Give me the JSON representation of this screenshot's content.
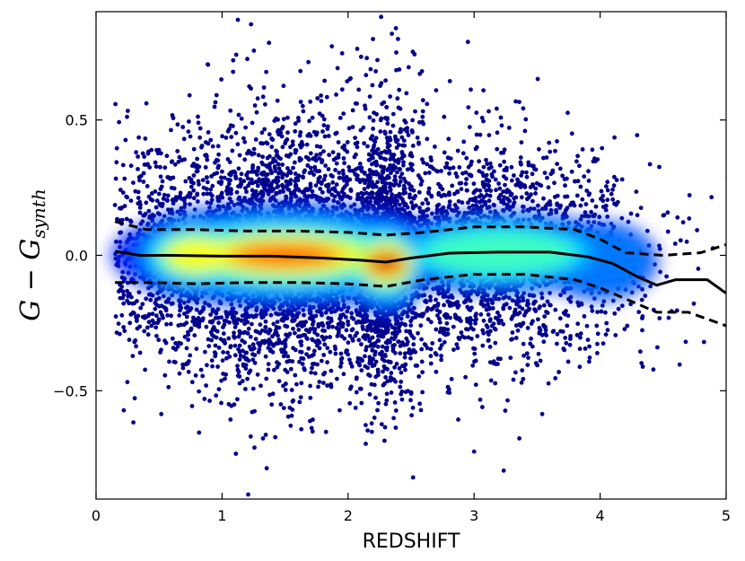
{
  "chart_data": {
    "type": "scatter",
    "xlabel": "REDSHIFT",
    "ylabel": "G − G_synth",
    "ylabel_main": "G − G",
    "ylabel_sub": "synth",
    "xlim": [
      0,
      5
    ],
    "ylim": [
      -0.9,
      0.9
    ],
    "xticks": [
      0,
      1,
      2,
      3,
      4,
      5
    ],
    "xtick_labels": [
      "0",
      "1",
      "2",
      "3",
      "4",
      "5"
    ],
    "yticks": [
      -0.5,
      0.0,
      0.5
    ],
    "ytick_labels": [
      "−0.5",
      "0.0",
      "0.5"
    ],
    "grid": false,
    "colormap": "jet",
    "point_color_low_density": "#00008b",
    "series": [
      {
        "style": "solid",
        "color": "#000000",
        "x": [
          0.15,
          0.35,
          0.6,
          1.0,
          1.4,
          1.8,
          2.1,
          2.3,
          2.5,
          2.8,
          3.2,
          3.6,
          3.9,
          4.1,
          4.3,
          4.45,
          4.6,
          4.85,
          5.0
        ],
        "y": [
          0.015,
          0.0,
          0.0,
          -0.003,
          -0.003,
          -0.01,
          -0.018,
          -0.025,
          -0.01,
          0.008,
          0.012,
          0.012,
          -0.005,
          -0.03,
          -0.08,
          -0.11,
          -0.09,
          -0.09,
          -0.14
        ]
      },
      {
        "style": "dashed",
        "color": "#000000",
        "x": [
          0.15,
          0.4,
          0.8,
          1.2,
          1.6,
          2.0,
          2.3,
          2.6,
          3.0,
          3.4,
          3.8,
          4.0,
          4.2,
          4.5,
          4.8,
          5.0
        ],
        "y": [
          0.125,
          0.095,
          0.095,
          0.09,
          0.09,
          0.085,
          0.075,
          0.085,
          0.105,
          0.105,
          0.095,
          0.06,
          0.01,
          0.0,
          0.01,
          0.04
        ]
      },
      {
        "style": "dashed",
        "color": "#000000",
        "x": [
          0.15,
          0.4,
          0.8,
          1.2,
          1.6,
          2.0,
          2.3,
          2.6,
          3.0,
          3.4,
          3.8,
          4.0,
          4.2,
          4.45,
          4.7,
          5.0
        ],
        "y": [
          -0.1,
          -0.1,
          -0.105,
          -0.1,
          -0.1,
          -0.105,
          -0.115,
          -0.09,
          -0.07,
          -0.07,
          -0.09,
          -0.12,
          -0.16,
          -0.21,
          -0.21,
          -0.26
        ]
      }
    ],
    "density_blobs": [
      {
        "x": 1.5,
        "y": 0.0,
        "sx": 0.75,
        "sy": 0.085,
        "w": 1.0
      },
      {
        "x": 0.8,
        "y": 0.0,
        "sx": 0.3,
        "sy": 0.09,
        "w": 0.55
      },
      {
        "x": 2.3,
        "y": -0.03,
        "sx": 0.14,
        "sy": 0.085,
        "w": 1.1
      },
      {
        "x": 3.2,
        "y": 0.01,
        "sx": 0.55,
        "sy": 0.09,
        "w": 0.42
      },
      {
        "x": 4.0,
        "y": -0.02,
        "sx": 0.25,
        "sy": 0.1,
        "w": 0.2
      }
    ]
  }
}
